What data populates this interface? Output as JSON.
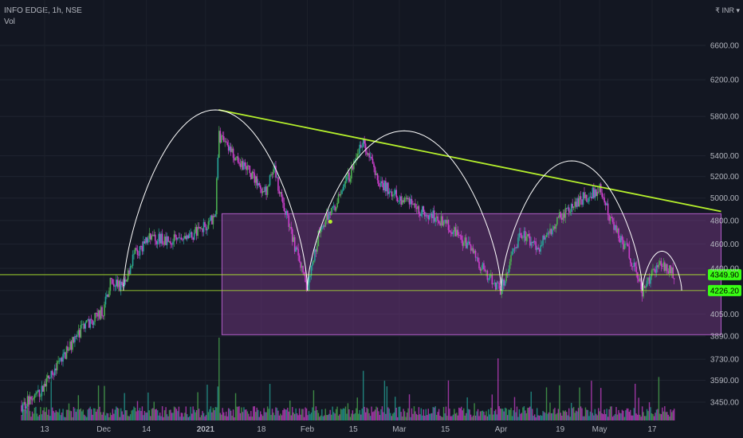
{
  "header": {
    "symbol_line": "INFO EDGE, 1h, NSE",
    "volume_label": "Vol",
    "currency": "₹ INR ▾"
  },
  "colors": {
    "background": "#131722",
    "up": "#26a69a",
    "up_bright": "#4caf50",
    "down": "#c940c9",
    "trend": "#b5f02c",
    "arcs": "#ffffff",
    "zone": "#7e3b8f",
    "label_green": "#39ff14"
  },
  "chart_data": {
    "type": "candlestick",
    "title": "INFO EDGE, 1h, NSE",
    "ylabel": "",
    "xlabel": "",
    "log_scale": true,
    "grid": true,
    "y_ticks": [
      3450,
      3590,
      3730,
      3890,
      4050,
      4226.2,
      4349.9,
      4400,
      4600,
      4800,
      5000,
      5200,
      5400,
      5800,
      6200,
      6600
    ],
    "y_tick_labels": [
      "3450.00",
      "3590.00",
      "3730.00",
      "3890.00",
      "4050.00",
      "4226.20",
      "4349.90",
      "4400.00",
      "4600.00",
      "4800.00",
      "5000.00",
      "5200.00",
      "5400.00",
      "5800.00",
      "6200.00",
      "6600.00"
    ],
    "x_tick_labels": [
      "13",
      "Dec",
      "14",
      "2021",
      "18",
      "Feb",
      "15",
      "Mar",
      "15",
      "Apr",
      "19",
      "May",
      "17"
    ],
    "x_tick_dates": [
      "2020-11-13",
      "2020-12-01",
      "2020-12-14",
      "2021-01-01",
      "2021-01-18",
      "2021-02-01",
      "2021-02-15",
      "2021-03-01",
      "2021-03-15",
      "2021-04-01",
      "2021-04-19",
      "2021-05-01",
      "2021-05-17"
    ],
    "price_labels": [
      {
        "value": 4349.9,
        "text": "4349.90"
      },
      {
        "value": 4226.2,
        "text": "4226.20"
      }
    ],
    "price_path": [
      [
        "2020-11-06",
        3430
      ],
      [
        "2020-11-12",
        3520
      ],
      [
        "2020-11-17",
        3690
      ],
      [
        "2020-11-24",
        3930
      ],
      [
        "2020-12-01",
        4080
      ],
      [
        "2020-12-03",
        4290
      ],
      [
        "2020-12-07",
        4260
      ],
      [
        "2020-12-10",
        4500
      ],
      [
        "2020-12-15",
        4660
      ],
      [
        "2020-12-21",
        4620
      ],
      [
        "2020-12-28",
        4680
      ],
      [
        "2021-01-01",
        4760
      ],
      [
        "2021-01-04",
        4850
      ],
      [
        "2021-01-05",
        5600
      ],
      [
        "2021-01-08",
        5460
      ],
      [
        "2021-01-13",
        5300
      ],
      [
        "2021-01-19",
        5050
      ],
      [
        "2021-01-22",
        5250
      ],
      [
        "2021-01-27",
        4700
      ],
      [
        "2021-02-01",
        4226
      ],
      [
        "2021-02-05",
        4750
      ],
      [
        "2021-02-10",
        4950
      ],
      [
        "2021-02-15",
        5300
      ],
      [
        "2021-02-18",
        5560
      ],
      [
        "2021-02-22",
        5180
      ],
      [
        "2021-03-01",
        5000
      ],
      [
        "2021-03-08",
        4880
      ],
      [
        "2021-03-15",
        4790
      ],
      [
        "2021-03-22",
        4580
      ],
      [
        "2021-03-29",
        4300
      ],
      [
        "2021-04-01",
        4226
      ],
      [
        "2021-04-07",
        4700
      ],
      [
        "2021-04-12",
        4560
      ],
      [
        "2021-04-19",
        4840
      ],
      [
        "2021-04-26",
        5000
      ],
      [
        "2021-05-01",
        5080
      ],
      [
        "2021-05-05",
        4760
      ],
      [
        "2021-05-10",
        4520
      ],
      [
        "2021-05-14",
        4226
      ],
      [
        "2021-05-19",
        4460
      ],
      [
        "2021-05-24",
        4349.9
      ]
    ],
    "annotations": {
      "trendline": [
        [
          "2021-01-05",
          5870
        ],
        [
          "2021-06-07",
          4880
        ]
      ],
      "horizontal_lines": [
        4226.2,
        4349.9
      ],
      "zone": {
        "from": "2021-01-06",
        "to": "2021-06-07",
        "low": 3900,
        "high": 4860
      },
      "arcs": [
        {
          "from": "2020-12-07",
          "to": "2021-02-01",
          "base": 4226,
          "peak": 5870
        },
        {
          "from": "2021-02-01",
          "to": "2021-04-01",
          "base": 4226,
          "peak": 5650
        },
        {
          "from": "2021-04-01",
          "to": "2021-05-14",
          "base": 4226,
          "peak": 5350
        },
        {
          "from": "2021-05-14",
          "to": "2021-05-26",
          "base": 4226,
          "peak": 4540
        }
      ]
    }
  }
}
